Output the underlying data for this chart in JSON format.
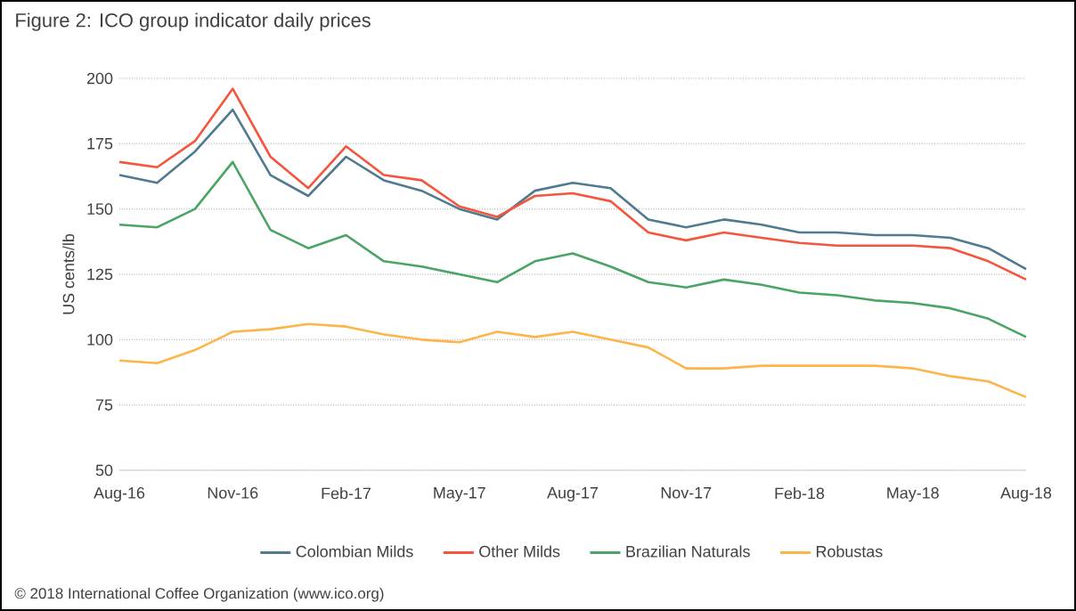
{
  "chart_data": {
    "type": "line",
    "title": "Figure 2: ICO group indicator daily prices",
    "ylabel": "US cents/lb",
    "x": [
      "2016-08",
      "2016-09",
      "2016-10",
      "2016-11",
      "2016-12",
      "2017-01",
      "2017-02",
      "2017-03",
      "2017-04",
      "2017-05",
      "2017-06",
      "2017-07",
      "2017-08",
      "2017-09",
      "2017-10",
      "2017-11",
      "2017-12",
      "2018-01",
      "2018-02",
      "2018-03",
      "2018-04",
      "2018-05",
      "2018-06",
      "2018-07",
      "2018-08"
    ],
    "series": [
      {
        "name": "Colombian Milds",
        "color": "#4f7a8f",
        "values": [
          163,
          160,
          172,
          188,
          163,
          155,
          170,
          161,
          157,
          150,
          146,
          157,
          160,
          158,
          146,
          143,
          146,
          144,
          141,
          141,
          140,
          140,
          139,
          135,
          127
        ]
      },
      {
        "name": "Other Milds",
        "color": "#f4553e",
        "values": [
          168,
          166,
          176,
          196,
          170,
          158,
          174,
          163,
          161,
          151,
          147,
          155,
          156,
          153,
          141,
          138,
          141,
          139,
          137,
          136,
          136,
          136,
          135,
          130,
          123
        ]
      },
      {
        "name": "Brazilian Naturals",
        "color": "#4aa564",
        "values": [
          144,
          143,
          150,
          168,
          142,
          135,
          140,
          130,
          128,
          125,
          122,
          130,
          133,
          128,
          122,
          120,
          123,
          121,
          118,
          117,
          115,
          114,
          112,
          108,
          101
        ]
      },
      {
        "name": "Robustas",
        "color": "#fdb54a",
        "values": [
          92,
          91,
          96,
          103,
          104,
          106,
          105,
          102,
          100,
          99,
          103,
          101,
          103,
          100,
          97,
          89,
          89,
          90,
          90,
          90,
          90,
          89,
          86,
          84,
          78
        ]
      }
    ],
    "xlim": [
      "2016-08",
      "2018-08"
    ],
    "xticks": [
      {
        "value": "2016-08",
        "label": "Aug-16"
      },
      {
        "value": "2016-11",
        "label": "Nov-16"
      },
      {
        "value": "2017-02",
        "label": "Feb-17"
      },
      {
        "value": "2017-05",
        "label": "May-17"
      },
      {
        "value": "2017-08",
        "label": "Aug-17"
      },
      {
        "value": "2017-11",
        "label": "Nov-17"
      },
      {
        "value": "2018-02",
        "label": "Feb-18"
      },
      {
        "value": "2018-05",
        "label": "May-18"
      },
      {
        "value": "2018-08",
        "label": "Aug-18"
      }
    ],
    "ylim": [
      50,
      200
    ],
    "yticks": [
      50,
      75,
      100,
      125,
      150,
      175,
      200
    ],
    "grid": "y",
    "legend": "bottom",
    "marker": "none",
    "line_style": "solid",
    "annotations": [
      "© 2018 International Coffee Organization (www.ico.org)"
    ]
  }
}
